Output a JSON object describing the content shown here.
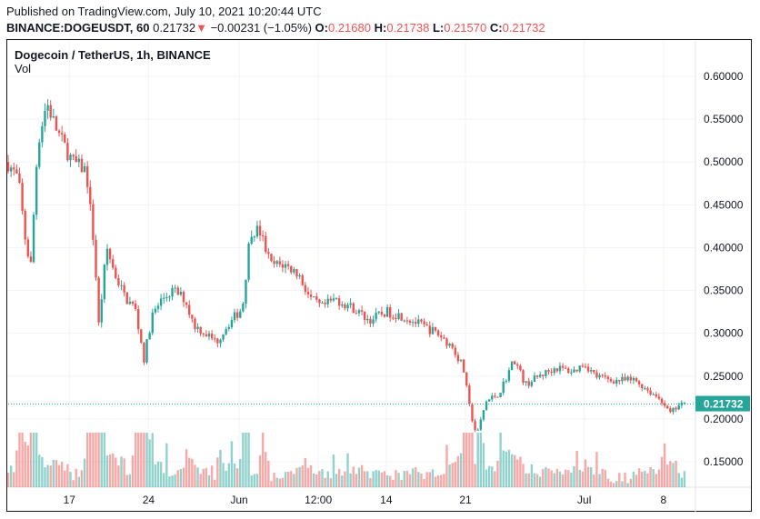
{
  "header": {
    "published": "Published on TradingView.com, July 10, 2021 10:20:44 UTC",
    "symbol": "BINANCE:DOGEUSDT, 60",
    "last": "0.21732",
    "change": "−0.00231 (−1.05%)",
    "o_label": "O:",
    "o": "0.21680",
    "h_label": "H:",
    "h": "0.21738",
    "l_label": "L:",
    "l": "0.21570",
    "c_label": "C:",
    "c": "0.21732"
  },
  "legend": {
    "title": "Dogecoin / TetherUS, 1h, BINANCE",
    "vol": "Vol"
  },
  "colors": {
    "up": "#26a69a",
    "down": "#ef5350",
    "grid": "#f0f3fa"
  },
  "chart_data": {
    "type": "candlestick",
    "title": "Dogecoin / TetherUS, 1h, BINANCE",
    "x_unit": "days since May 12 2021",
    "ylim": [
      0.12,
      0.62
    ],
    "y_ticks": [
      "0.60000",
      "0.55000",
      "0.50000",
      "0.45000",
      "0.40000",
      "0.35000",
      "0.30000",
      "0.25000",
      "0.20000",
      "0.15000"
    ],
    "x_ticks": [
      {
        "label": "17",
        "x": 5
      },
      {
        "label": "24",
        "x": 12
      },
      {
        "label": "Jun",
        "x": 20
      },
      {
        "label": "12:00",
        "x": 27
      },
      {
        "label": "14",
        "x": 33
      },
      {
        "label": "21",
        "x": 40
      },
      {
        "label": "Jul",
        "x": 50.5
      },
      {
        "label": "8",
        "x": 57.5
      }
    ],
    "last_price": 0.21732,
    "last_price_label": "0.21732",
    "path": [
      [
        -0.5,
        0.5
      ],
      [
        0.5,
        0.48
      ],
      [
        1.2,
        0.4
      ],
      [
        1.6,
        0.38
      ],
      [
        2.2,
        0.52
      ],
      [
        3,
        0.57
      ],
      [
        3.8,
        0.54
      ],
      [
        4.5,
        0.52
      ],
      [
        5.3,
        0.5
      ],
      [
        6.5,
        0.49
      ],
      [
        7.2,
        0.4
      ],
      [
        7.6,
        0.31
      ],
      [
        8.3,
        0.4
      ],
      [
        9,
        0.37
      ],
      [
        10,
        0.34
      ],
      [
        10.8,
        0.33
      ],
      [
        11.6,
        0.27
      ],
      [
        12.3,
        0.32
      ],
      [
        13.2,
        0.34
      ],
      [
        14.2,
        0.35
      ],
      [
        15.2,
        0.34
      ],
      [
        16,
        0.31
      ],
      [
        17,
        0.3
      ],
      [
        18,
        0.29
      ],
      [
        19,
        0.31
      ],
      [
        20.3,
        0.33
      ],
      [
        21,
        0.42
      ],
      [
        21.8,
        0.42
      ],
      [
        22.8,
        0.38
      ],
      [
        24,
        0.38
      ],
      [
        25.2,
        0.37
      ],
      [
        26.3,
        0.34
      ],
      [
        27.3,
        0.33
      ],
      [
        28.5,
        0.34
      ],
      [
        30,
        0.33
      ],
      [
        31.5,
        0.315
      ],
      [
        33,
        0.325
      ],
      [
        34.5,
        0.32
      ],
      [
        36,
        0.31
      ],
      [
        37.5,
        0.3
      ],
      [
        38.8,
        0.285
      ],
      [
        39.8,
        0.26
      ],
      [
        40.4,
        0.21
      ],
      [
        41,
        0.18
      ],
      [
        41.8,
        0.22
      ],
      [
        43,
        0.23
      ],
      [
        44.3,
        0.27
      ],
      [
        45.3,
        0.24
      ],
      [
        46.5,
        0.25
      ],
      [
        48,
        0.26
      ],
      [
        49.5,
        0.255
      ],
      [
        50.5,
        0.265
      ],
      [
        51.5,
        0.25
      ],
      [
        53,
        0.245
      ],
      [
        55,
        0.245
      ],
      [
        56.5,
        0.23
      ],
      [
        57.5,
        0.22
      ],
      [
        58,
        0.205
      ],
      [
        58.8,
        0.215
      ],
      [
        59.5,
        0.2173
      ]
    ],
    "volume_note": "Vol"
  }
}
